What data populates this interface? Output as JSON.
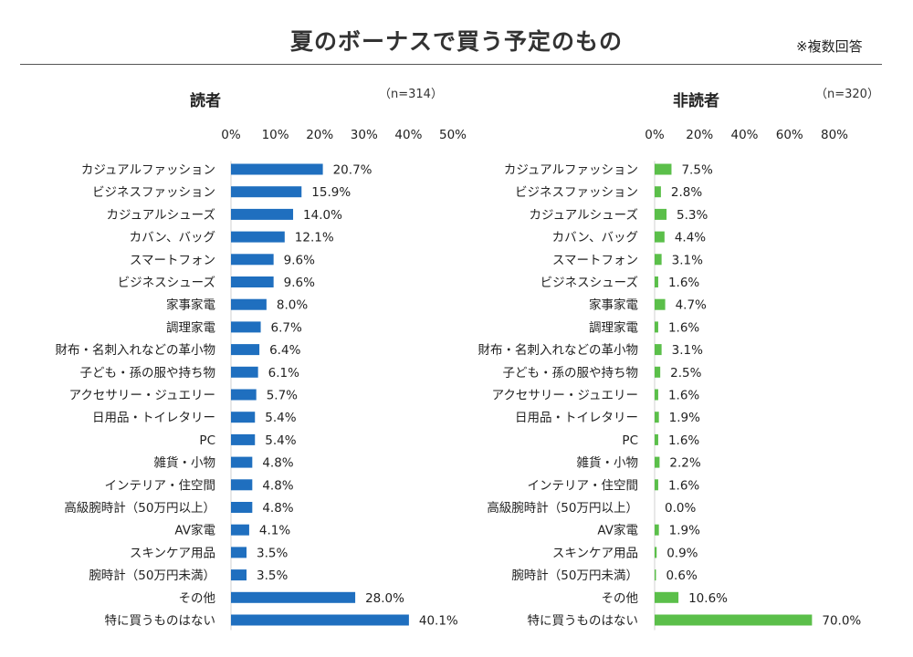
{
  "title": "夏のボーナスで買う予定のもの",
  "note": "※複数回答",
  "chart_data": [
    {
      "type": "bar",
      "orientation": "horizontal",
      "title": "読者",
      "n_label": "（n=314）",
      "color": "#1f6fbf",
      "xlim": [
        0,
        50
      ],
      "ticks": [
        0,
        10,
        20,
        30,
        40,
        50
      ],
      "tick_labels": [
        "0%",
        "10%",
        "20%",
        "30%",
        "40%",
        "50%"
      ],
      "categories": [
        "カジュアルファッション",
        "ビジネスファッション",
        "カジュアルシューズ",
        "カバン、バッグ",
        "スマートフォン",
        "ビジネスシューズ",
        "家事家電",
        "調理家電",
        "財布・名刺入れなどの革小物",
        "子ども・孫の服や持ち物",
        "アクセサリー・ジュエリー",
        "日用品・トイレタリー",
        "PC",
        "雑貨・小物",
        "インテリア・住空間",
        "高級腕時計（50万円以上）",
        "AV家電",
        "スキンケア用品",
        "腕時計（50万円未満）",
        "その他",
        "特に買うものはない"
      ],
      "values": [
        20.7,
        15.9,
        14.0,
        12.1,
        9.6,
        9.6,
        8.0,
        6.7,
        6.4,
        6.1,
        5.7,
        5.4,
        5.4,
        4.8,
        4.8,
        4.8,
        4.1,
        3.5,
        3.5,
        28.0,
        40.1
      ],
      "value_labels": [
        "20.7%",
        "15.9%",
        "14.0%",
        "12.1%",
        "9.6%",
        "9.6%",
        "8.0%",
        "6.7%",
        "6.4%",
        "6.1%",
        "5.7%",
        "5.4%",
        "5.4%",
        "4.8%",
        "4.8%",
        "4.8%",
        "4.1%",
        "3.5%",
        "3.5%",
        "28.0%",
        "40.1%"
      ]
    },
    {
      "type": "bar",
      "orientation": "horizontal",
      "title": "非読者",
      "n_label": "（n=320）",
      "color": "#5bbf4a",
      "xlim": [
        0,
        80
      ],
      "ticks": [
        0,
        20,
        40,
        60,
        80
      ],
      "tick_labels": [
        "0%",
        "20%",
        "40%",
        "60%",
        "80%"
      ],
      "categories": [
        "カジュアルファッション",
        "ビジネスファッション",
        "カジュアルシューズ",
        "カバン、バッグ",
        "スマートフォン",
        "ビジネスシューズ",
        "家事家電",
        "調理家電",
        "財布・名刺入れなどの革小物",
        "子ども・孫の服や持ち物",
        "アクセサリー・ジュエリー",
        "日用品・トイレタリー",
        "PC",
        "雑貨・小物",
        "インテリア・住空間",
        "高級腕時計（50万円以上）",
        "AV家電",
        "スキンケア用品",
        "腕時計（50万円未満）",
        "その他",
        "特に買うものはない"
      ],
      "values": [
        7.5,
        2.8,
        5.3,
        4.4,
        3.1,
        1.6,
        4.7,
        1.6,
        3.1,
        2.5,
        1.6,
        1.9,
        1.6,
        2.2,
        1.6,
        0.0,
        1.9,
        0.9,
        0.6,
        10.6,
        70.0
      ],
      "value_labels": [
        "7.5%",
        "2.8%",
        "5.3%",
        "4.4%",
        "3.1%",
        "1.6%",
        "4.7%",
        "1.6%",
        "3.1%",
        "2.5%",
        "1.6%",
        "1.9%",
        "1.6%",
        "2.2%",
        "1.6%",
        "0.0%",
        "1.9%",
        "0.9%",
        "0.6%",
        "10.6%",
        "70.0%"
      ]
    }
  ]
}
